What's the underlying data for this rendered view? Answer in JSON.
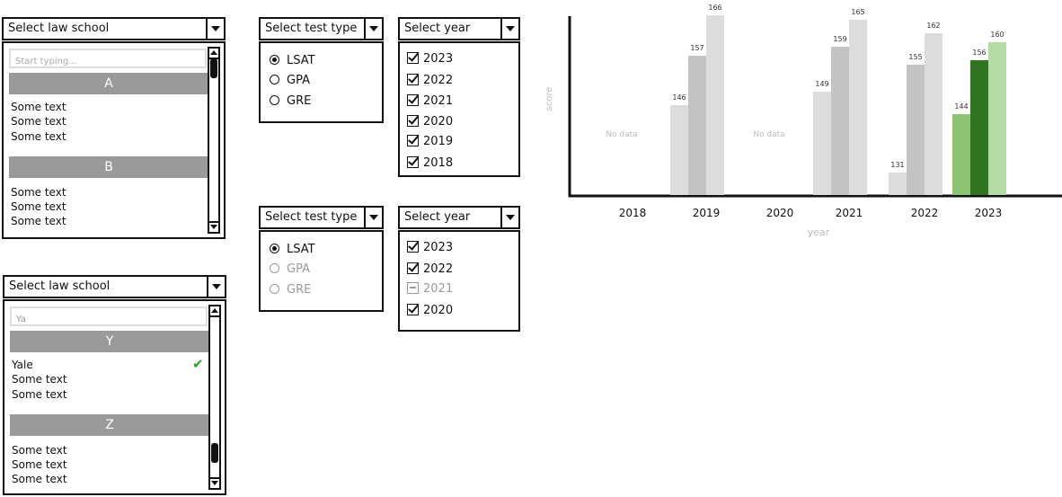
{
  "school_top": {
    "header": "Select law school",
    "search_placeholder": "Start typing...",
    "group_a": "A",
    "group_a_items": [
      "Some text",
      "Some text",
      "Some text"
    ],
    "group_b": "B",
    "group_b_items": [
      "Some text",
      "Some text",
      "Some text"
    ]
  },
  "school_bottom": {
    "header": "Select law school",
    "search_value": "Ya",
    "group_y": "Y",
    "group_y_items": [
      "Yale",
      "Some text",
      "Some text"
    ],
    "group_z": "Z",
    "group_z_items": [
      "Some text",
      "Some text",
      "Some text"
    ],
    "selected_mark": "✔"
  },
  "test_top": {
    "header": "Select test type",
    "options": [
      "LSAT",
      "GPA",
      "GRE"
    ],
    "selected": "LSAT"
  },
  "test_bottom": {
    "header": "Select test type",
    "options": [
      "LSAT",
      "GPA",
      "GRE"
    ],
    "selected": "LSAT"
  },
  "year_top": {
    "header": "Select year",
    "options": [
      "2023",
      "2022",
      "2021",
      "2020",
      "2019",
      "2018"
    ]
  },
  "year_bottom": {
    "header": "Select year",
    "options": [
      "2023",
      "2022",
      "2021",
      "2020"
    ]
  },
  "colors": {
    "bar_light": "#dcdcdc",
    "bar_mid": "#cccccc",
    "bar_dark": "#c3c3c3",
    "green_light": "#8cc472",
    "green_dark": "#2f7420",
    "green_pale": "#b5dba5",
    "axis": "#111111",
    "muted_text": "#bbbbbb"
  },
  "chart_data": {
    "type": "bar",
    "xlabel": "year",
    "ylabel": "score",
    "categories": [
      "2018",
      "2019",
      "2020",
      "2021",
      "2022",
      "2023"
    ],
    "bars": [
      {
        "year": "2018",
        "values": [],
        "note": "No data"
      },
      {
        "year": "2019",
        "values": [
          146,
          157,
          166
        ]
      },
      {
        "year": "2020",
        "values": [],
        "note": "No data"
      },
      {
        "year": "2021",
        "values": [
          149,
          159,
          165
        ]
      },
      {
        "year": "2022",
        "values": [
          131,
          155,
          162
        ]
      },
      {
        "year": "2023",
        "values": [
          144,
          156,
          160
        ],
        "highlight": true
      }
    ]
  }
}
